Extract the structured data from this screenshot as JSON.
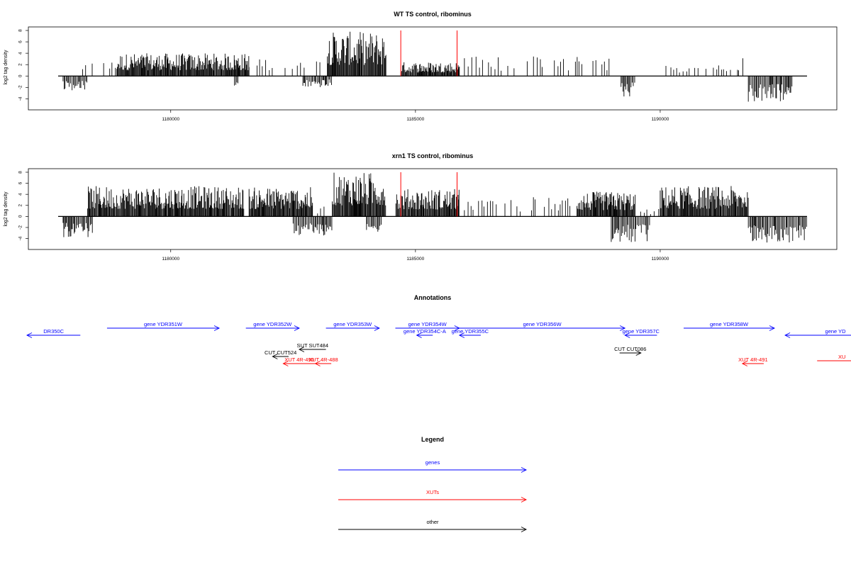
{
  "chart_data": [
    {
      "type": "bar",
      "title": "WT TS control, ribominus",
      "ylabel": "log2 tag density",
      "xlabel": "",
      "xlim": [
        1177700,
        1193000
      ],
      "ylim": [
        -5,
        8
      ],
      "yticks": [
        "-4",
        "-2",
        "0",
        "2",
        "4",
        "6",
        "8"
      ],
      "xticks": [
        "1180000",
        "1185000",
        "1190000"
      ],
      "plus_strand": [
        {
          "from": 1178200,
          "to": 1178900,
          "sparse": true,
          "max": 2.5
        },
        {
          "from": 1178900,
          "to": 1181600,
          "sparse": false,
          "max": 4.0
        },
        {
          "from": 1181600,
          "to": 1183200,
          "sparse": true,
          "max": 3.0
        },
        {
          "from": 1183200,
          "to": 1184400,
          "sparse": false,
          "max": 7.8
        },
        {
          "from": 1184700,
          "to": 1185900,
          "sparse": false,
          "max": 2.5
        },
        {
          "from": 1186000,
          "to": 1189000,
          "sparse": true,
          "max": 3.5
        },
        {
          "from": 1190000,
          "to": 1191600,
          "sparse": true,
          "max": 2.0
        },
        {
          "from": 1191600,
          "to": 1191800,
          "sparse": true,
          "max": 3.2
        }
      ],
      "minus_strand": [
        {
          "from": 1177800,
          "to": 1178300,
          "max": -2.6
        },
        {
          "from": 1181300,
          "to": 1181400,
          "max": -2.2
        },
        {
          "from": 1182700,
          "to": 1183300,
          "max": -2.0
        },
        {
          "from": 1189200,
          "to": 1189500,
          "max": -3.8
        },
        {
          "from": 1191800,
          "to": 1192700,
          "max": -4.6
        }
      ],
      "highlight_lines_x": [
        1184700,
        1185850
      ],
      "highlight_color": "#ff0000",
      "bar_color": "#000000"
    },
    {
      "type": "bar",
      "title": "xrn1 TS control, ribominus",
      "ylabel": "log2 tag density",
      "xlabel": "",
      "xlim": [
        1177700,
        1193000
      ],
      "ylim": [
        -5,
        8
      ],
      "yticks": [
        "-4",
        "-2",
        "0",
        "2",
        "4",
        "6",
        "8"
      ],
      "xticks": [
        "1180000",
        "1185000",
        "1190000"
      ],
      "plus_strand": [
        {
          "from": 1178300,
          "to": 1181500,
          "sparse": false,
          "max": 5.5
        },
        {
          "from": 1181600,
          "to": 1182900,
          "sparse": false,
          "max": 5.3
        },
        {
          "from": 1183000,
          "to": 1183300,
          "sparse": true,
          "max": 2.0
        },
        {
          "from": 1183300,
          "to": 1184400,
          "sparse": false,
          "max": 8.0
        },
        {
          "from": 1184600,
          "to": 1185900,
          "sparse": false,
          "max": 5.0
        },
        {
          "from": 1186000,
          "to": 1188300,
          "sparse": true,
          "max": 3.5
        },
        {
          "from": 1188300,
          "to": 1189500,
          "sparse": false,
          "max": 4.5
        },
        {
          "from": 1189600,
          "to": 1190000,
          "sparse": true,
          "max": 1.5
        },
        {
          "from": 1190000,
          "to": 1191800,
          "sparse": false,
          "max": 5.5
        }
      ],
      "minus_strand": [
        {
          "from": 1177800,
          "to": 1178400,
          "max": -3.8
        },
        {
          "from": 1182500,
          "to": 1183300,
          "max": -3.5
        },
        {
          "from": 1184000,
          "to": 1184300,
          "max": -2.8
        },
        {
          "from": 1189000,
          "to": 1189800,
          "max": -4.8
        },
        {
          "from": 1191800,
          "to": 1193000,
          "max": -4.8
        }
      ],
      "highlight_lines_x": [
        1184700,
        1185850
      ],
      "highlight_color": "#ff0000",
      "bar_color": "#000000"
    }
  ],
  "annotations": {
    "title": "Annotations",
    "features": [
      {
        "label": "DR350C",
        "type": "gene",
        "strand": "-",
        "start": 1177700,
        "end": 1178700,
        "row": 2
      },
      {
        "label": "gene YDR351W",
        "type": "gene",
        "strand": "+",
        "start": 1179200,
        "end": 1181300,
        "row": 1
      },
      {
        "label": "gene YDR352W",
        "type": "gene",
        "strand": "+",
        "start": 1181800,
        "end": 1182800,
        "row": 1
      },
      {
        "label": "gene YDR353W",
        "type": "gene",
        "strand": "+",
        "start": 1183300,
        "end": 1184300,
        "row": 1
      },
      {
        "label": "gene YDR354W",
        "type": "gene",
        "strand": "+",
        "start": 1184600,
        "end": 1185800,
        "row": 1
      },
      {
        "label": "gene YDR354C-A",
        "type": "gene",
        "strand": "-",
        "start": 1185000,
        "end": 1185300,
        "row": 2
      },
      {
        "label": "gene YDR355C",
        "type": "gene",
        "strand": "-",
        "start": 1185800,
        "end": 1186200,
        "row": 2
      },
      {
        "label": "gene YDR356W",
        "type": "gene",
        "strand": "+",
        "start": 1185800,
        "end": 1188900,
        "row": 1
      },
      {
        "label": "gene YDR357C",
        "type": "gene",
        "strand": "-",
        "start": 1188900,
        "end": 1189500,
        "row": 2
      },
      {
        "label": "gene YDR358W",
        "type": "gene",
        "strand": "+",
        "start": 1190000,
        "end": 1191700,
        "row": 1
      },
      {
        "label": "gene YD",
        "type": "gene",
        "strand": "-",
        "start": 1191900,
        "end": 1193400,
        "row": 2
      },
      {
        "label": "SUT SUT484",
        "type": "other",
        "strand": "-",
        "start": 1182800,
        "end": 1183300,
        "row": 4
      },
      {
        "label": "CUT CUT524",
        "type": "other",
        "strand": "-",
        "start": 1182300,
        "end": 1182600,
        "row": 5
      },
      {
        "label": "CUT CUT086",
        "type": "other",
        "strand": "+",
        "start": 1188800,
        "end": 1189200,
        "row": 4.5
      },
      {
        "label": "XUT 4R-490",
        "type": "XUT",
        "strand": "-",
        "start": 1182500,
        "end": 1183100,
        "row": 6
      },
      {
        "label": "XUT 4R-488",
        "type": "XUT",
        "strand": "-",
        "start": 1183100,
        "end": 1183400,
        "row": 6
      },
      {
        "label": "XUT 4R-491",
        "type": "XUT",
        "strand": "-",
        "start": 1191100,
        "end": 1191500,
        "row": 6
      },
      {
        "label": "XU",
        "type": "XUT",
        "strand": "+",
        "start": 1192500,
        "end": 1193400,
        "row": 5.6
      }
    ]
  },
  "legend": {
    "title": "Legend",
    "items": [
      {
        "label": "genes",
        "color": "#0000ff"
      },
      {
        "label": "XUTs",
        "color": "#ff0000"
      },
      {
        "label": "other",
        "color": "#000000"
      }
    ]
  },
  "colors": {
    "gene": "#0000ff",
    "XUT": "#ff0000",
    "other": "#000000"
  }
}
